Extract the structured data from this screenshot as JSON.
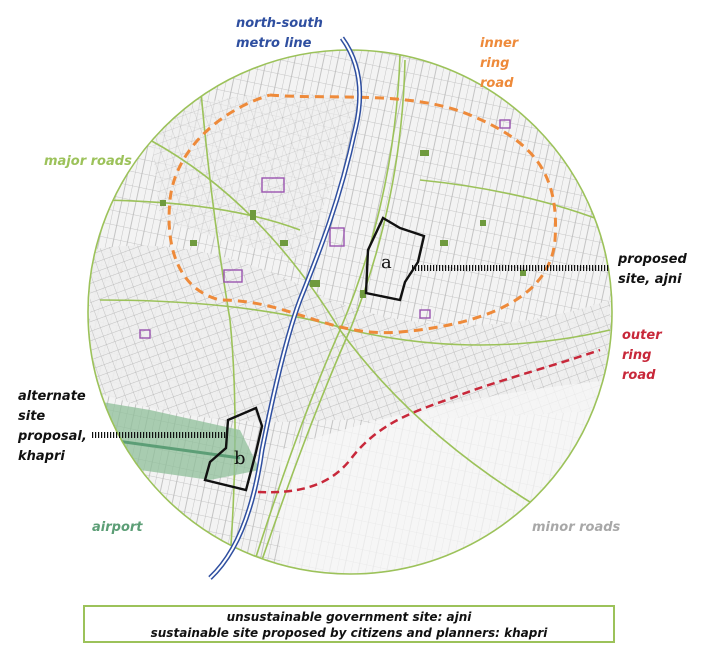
{
  "labels": {
    "metro": [
      "north-south",
      "metro line"
    ],
    "inner_ring": [
      "inner",
      "ring",
      "road"
    ],
    "major_roads": "major roads",
    "proposed": [
      "proposed",
      "site, ajni"
    ],
    "outer_ring": [
      "outer",
      "ring",
      "road"
    ],
    "alternate": [
      "alternate",
      "site",
      "proposal,",
      "khapri"
    ],
    "airport": "airport",
    "minor_roads": "minor roads"
  },
  "sites": {
    "a": "a",
    "b": "b"
  },
  "caption": {
    "line1": "unsustainable government site: ajni",
    "line2": "sustainable site proposed by citizens and planners: khapri"
  },
  "colors": {
    "metro": "#2f4fa0",
    "inner_ring": "#ee8a3a",
    "outer_ring": "#c8283a",
    "major_roads": "#9cc25a",
    "minor_roads": "#a8a8a8",
    "airport": "#5c9e76"
  }
}
